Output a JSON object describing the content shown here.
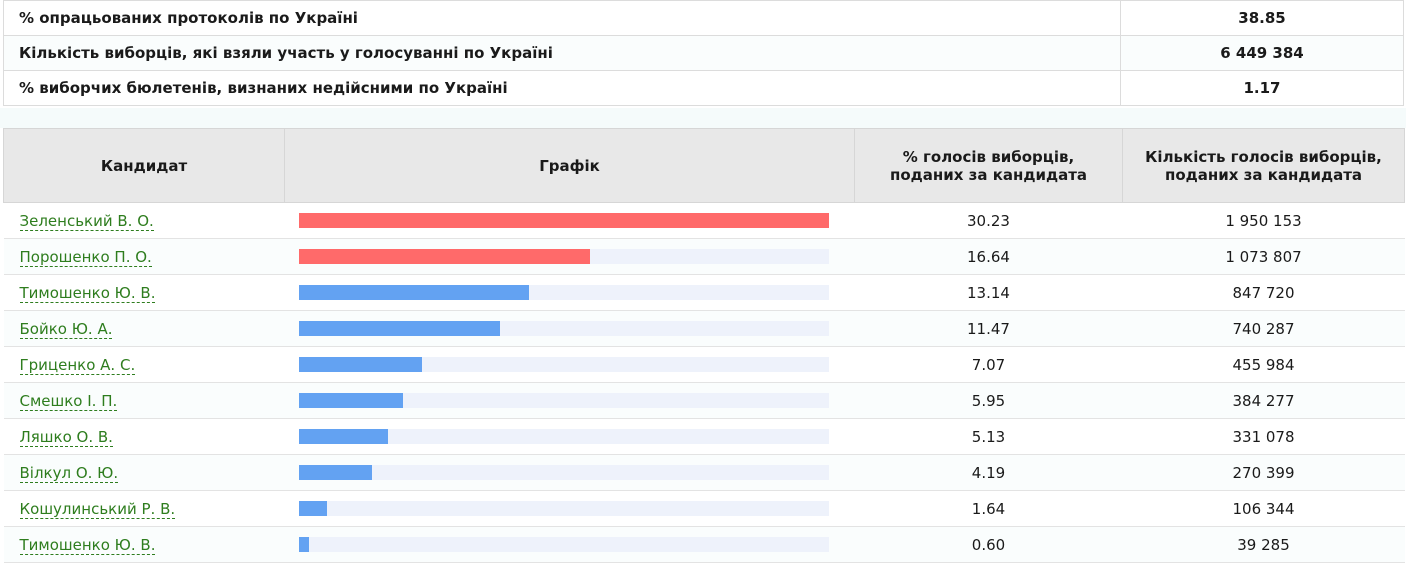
{
  "summary": [
    {
      "label": "% опрацьованих протоколів по Україні",
      "value": "38.85"
    },
    {
      "label": "Кількість виборців, які взяли участь у голосуванні по Україні",
      "value": "6 449 384"
    },
    {
      "label": "% виборчих бюлетенів, визнаних недійсними по Україні",
      "value": "1.17"
    }
  ],
  "headers": {
    "candidate": "Кандидат",
    "chart": "Графік",
    "percent": "% голосів виборців, поданих за кандидата",
    "votes": "Кількість голосів виборців, поданих за кандидата"
  },
  "colors": {
    "leader_bar": "#ff6a6a",
    "other_bar": "#63a2f2",
    "link": "#2e7d1e"
  },
  "chart_data": {
    "type": "bar",
    "max_value": 30.23,
    "candidates": [
      {
        "name": "Зеленський В. О.",
        "percent": "30.23",
        "value": 30.23,
        "votes": "1 950 153",
        "leader": true
      },
      {
        "name": "Порошенко П. О.",
        "percent": "16.64",
        "value": 16.64,
        "votes": "1 073 807",
        "leader": true
      },
      {
        "name": "Тимошенко Ю. В.",
        "percent": "13.14",
        "value": 13.14,
        "votes": "847 720",
        "leader": false
      },
      {
        "name": "Бойко Ю. А.",
        "percent": "11.47",
        "value": 11.47,
        "votes": "740 287",
        "leader": false
      },
      {
        "name": "Гриценко А. С.",
        "percent": "7.07",
        "value": 7.07,
        "votes": "455 984",
        "leader": false
      },
      {
        "name": "Смешко І. П.",
        "percent": "5.95",
        "value": 5.95,
        "votes": "384 277",
        "leader": false
      },
      {
        "name": "Ляшко О. В.",
        "percent": "5.13",
        "value": 5.13,
        "votes": "331 078",
        "leader": false
      },
      {
        "name": "Вілкул О. Ю.",
        "percent": "4.19",
        "value": 4.19,
        "votes": "270 399",
        "leader": false
      },
      {
        "name": "Кошулинський Р. В.",
        "percent": "1.64",
        "value": 1.64,
        "votes": "106 344",
        "leader": false
      },
      {
        "name": "Тимошенко Ю. В.",
        "percent": "0.60",
        "value": 0.6,
        "votes": "39 285",
        "leader": false
      }
    ]
  }
}
